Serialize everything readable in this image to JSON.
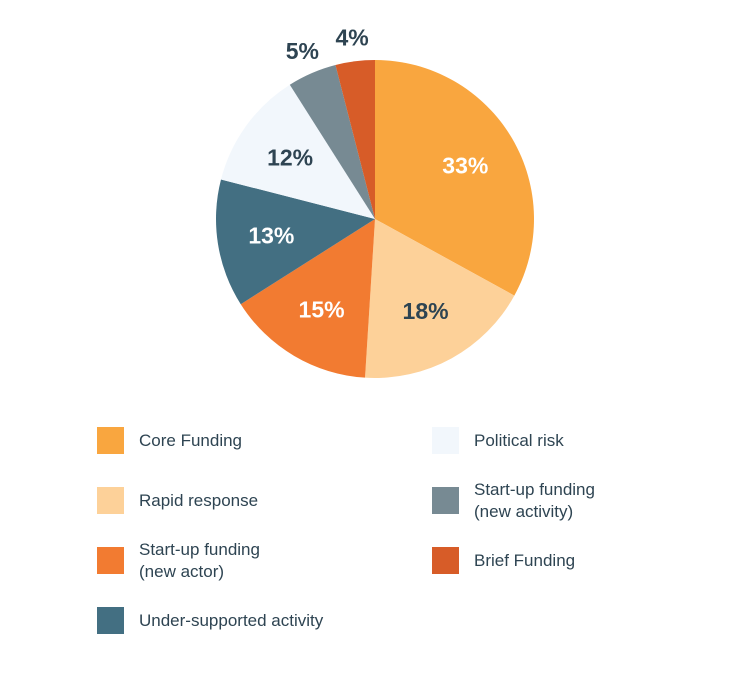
{
  "chart_data": {
    "type": "pie",
    "start": "top",
    "direction": "clockwise",
    "slices": [
      {
        "name": "Core Funding",
        "value": 33,
        "label": "33%",
        "color": "#F9A63F",
        "label_color": "#FFFFFF",
        "label_position": "inside"
      },
      {
        "name": "Rapid response",
        "value": 18,
        "label": "18%",
        "color": "#FDD199",
        "label_color": "#2E4452",
        "label_position": "inside"
      },
      {
        "name": "Start-up funding\n(new actor)",
        "value": 15,
        "label": "15%",
        "color": "#F27B31",
        "label_color": "#FFFFFF",
        "label_position": "inside"
      },
      {
        "name": "Under-supported activity",
        "value": 13,
        "label": "13%",
        "color": "#436F82",
        "label_color": "#FFFFFF",
        "label_position": "inside"
      },
      {
        "name": "Political risk",
        "value": 12,
        "label": "12%",
        "color": "#F2F7FC",
        "label_color": "#2E4452",
        "label_position": "inside"
      },
      {
        "name": "Start-up funding\n(new activity)",
        "value": 5,
        "label": "5%",
        "color": "#778A93",
        "label_color": "#2E4452",
        "label_position": "outside"
      },
      {
        "name": "Brief Funding",
        "value": 4,
        "label": "4%",
        "color": "#D75C28",
        "label_color": "#2E4452",
        "label_position": "outside"
      }
    ],
    "legend": {
      "placement": "bottom",
      "columns": 2
    }
  }
}
